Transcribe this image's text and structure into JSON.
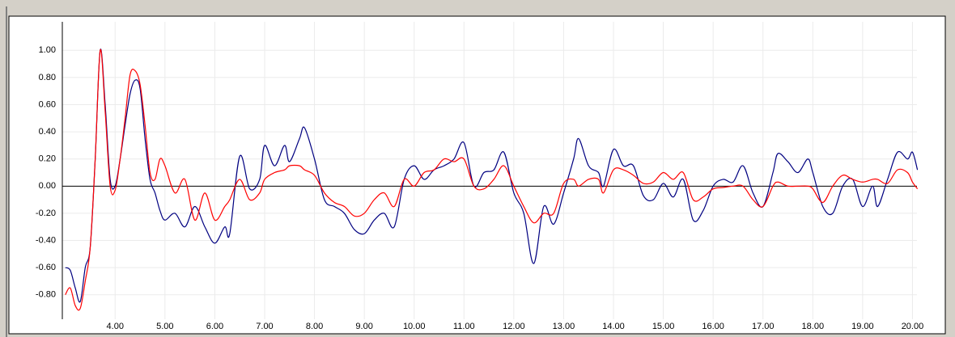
{
  "chart_data": {
    "type": "line",
    "x": [
      3.0,
      3.1,
      3.2,
      3.3,
      3.4,
      3.5,
      3.6,
      3.7,
      3.8,
      3.9,
      4.0,
      4.1,
      4.2,
      4.3,
      4.4,
      4.5,
      4.6,
      4.7,
      4.8,
      4.9,
      5.0,
      5.2,
      5.4,
      5.6,
      5.8,
      6.0,
      6.2,
      6.3,
      6.5,
      6.7,
      6.9,
      7.0,
      7.2,
      7.4,
      7.5,
      7.7,
      7.8,
      8.0,
      8.2,
      8.4,
      8.6,
      8.8,
      9.0,
      9.2,
      9.4,
      9.6,
      9.8,
      10.0,
      10.2,
      10.4,
      10.6,
      10.8,
      11.0,
      11.2,
      11.4,
      11.6,
      11.8,
      12.0,
      12.2,
      12.4,
      12.6,
      12.8,
      13.0,
      13.2,
      13.3,
      13.5,
      13.7,
      13.8,
      14.0,
      14.2,
      14.4,
      14.6,
      14.8,
      15.0,
      15.2,
      15.4,
      15.6,
      15.8,
      16.0,
      16.2,
      16.4,
      16.6,
      16.8,
      17.0,
      17.2,
      17.3,
      17.5,
      17.7,
      17.9,
      18.0,
      18.2,
      18.4,
      18.6,
      18.8,
      19.0,
      19.2,
      19.3,
      19.5,
      19.7,
      19.9,
      20.0,
      20.1
    ],
    "series": [
      {
        "color": "#000080",
        "values": [
          -0.6,
          -0.62,
          -0.75,
          -0.85,
          -0.6,
          -0.45,
          0.2,
          1.0,
          0.6,
          0.05,
          0.0,
          0.2,
          0.45,
          0.68,
          0.78,
          0.72,
          0.35,
          0.05,
          -0.05,
          -0.18,
          -0.25,
          -0.2,
          -0.3,
          -0.15,
          -0.3,
          -0.42,
          -0.3,
          -0.35,
          0.22,
          -0.02,
          0.05,
          0.3,
          0.15,
          0.3,
          0.18,
          0.35,
          0.43,
          0.2,
          -0.1,
          -0.15,
          -0.2,
          -0.32,
          -0.35,
          -0.25,
          -0.2,
          -0.3,
          0.05,
          0.15,
          0.05,
          0.12,
          0.15,
          0.2,
          0.32,
          0.0,
          0.1,
          0.12,
          0.25,
          -0.05,
          -0.2,
          -0.57,
          -0.15,
          -0.28,
          -0.05,
          0.2,
          0.35,
          0.15,
          0.1,
          0.0,
          0.27,
          0.15,
          0.15,
          -0.07,
          -0.1,
          0.02,
          -0.08,
          0.05,
          -0.25,
          -0.18,
          0.0,
          0.05,
          0.03,
          0.15,
          -0.05,
          -0.15,
          0.1,
          0.24,
          0.18,
          0.1,
          0.2,
          0.1,
          -0.15,
          -0.2,
          0.0,
          0.05,
          -0.15,
          0.0,
          -0.15,
          0.05,
          0.25,
          0.2,
          0.25,
          0.12
        ]
      },
      {
        "color": "#ff0000",
        "values": [
          -0.8,
          -0.75,
          -0.88,
          -0.9,
          -0.7,
          -0.45,
          0.2,
          1.0,
          0.55,
          0.0,
          -0.03,
          0.2,
          0.5,
          0.82,
          0.85,
          0.75,
          0.45,
          0.1,
          0.05,
          0.2,
          0.15,
          -0.05,
          0.05,
          -0.25,
          -0.05,
          -0.25,
          -0.15,
          -0.1,
          0.05,
          -0.1,
          -0.05,
          0.05,
          0.1,
          0.12,
          0.15,
          0.15,
          0.12,
          0.08,
          -0.05,
          -0.12,
          -0.15,
          -0.22,
          -0.2,
          -0.1,
          -0.05,
          -0.15,
          0.05,
          0.0,
          0.1,
          0.12,
          0.2,
          0.18,
          0.2,
          0.0,
          -0.02,
          0.05,
          0.15,
          0.0,
          -0.15,
          -0.27,
          -0.2,
          -0.2,
          0.02,
          0.05,
          0.0,
          0.05,
          0.05,
          -0.05,
          0.12,
          0.12,
          0.08,
          0.02,
          0.03,
          0.1,
          0.05,
          0.1,
          -0.1,
          -0.08,
          -0.02,
          -0.01,
          0.0,
          0.0,
          -0.1,
          -0.15,
          0.0,
          0.03,
          0.0,
          0.0,
          0.0,
          -0.02,
          -0.12,
          0.0,
          0.08,
          0.05,
          0.03,
          0.05,
          0.05,
          0.02,
          0.12,
          0.1,
          0.03,
          -0.02
        ]
      }
    ],
    "xlim": [
      2.94,
      20.09
    ],
    "ylim": [
      -0.98,
      1.21
    ],
    "xticks": [
      {
        "value": 4,
        "label": "4.00"
      },
      {
        "value": 5,
        "label": "5.00"
      },
      {
        "value": 6,
        "label": "6.00"
      },
      {
        "value": 7,
        "label": "7.00"
      },
      {
        "value": 8,
        "label": "8.00"
      },
      {
        "value": 9,
        "label": "9.00"
      },
      {
        "value": 10,
        "label": "10.00"
      },
      {
        "value": 11,
        "label": "11.00"
      },
      {
        "value": 12,
        "label": "12.00"
      },
      {
        "value": 13,
        "label": "13.00"
      },
      {
        "value": 14,
        "label": "14.00"
      },
      {
        "value": 15,
        "label": "15.00"
      },
      {
        "value": 16,
        "label": "16.00"
      },
      {
        "value": 17,
        "label": "17.00"
      },
      {
        "value": 18,
        "label": "18.00"
      },
      {
        "value": 19,
        "label": "19.00"
      },
      {
        "value": 20,
        "label": "20.00"
      }
    ],
    "yticks": [
      {
        "value": -0.8,
        "label": "-0.80"
      },
      {
        "value": -0.6,
        "label": "-0.60"
      },
      {
        "value": -0.4,
        "label": "-0.40"
      },
      {
        "value": -0.2,
        "label": "-0.20"
      },
      {
        "value": 0,
        "label": "0.00"
      },
      {
        "value": 0.2,
        "label": "0.20"
      },
      {
        "value": 0.4,
        "label": "0.40"
      },
      {
        "value": 0.6,
        "label": "0.60"
      },
      {
        "value": 0.8,
        "label": "0.80"
      },
      {
        "value": 1,
        "label": "1.00"
      }
    ],
    "grid": true
  }
}
